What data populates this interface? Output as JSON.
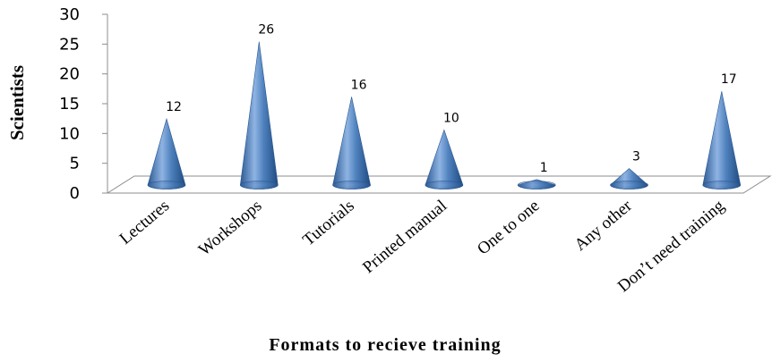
{
  "chart_data": {
    "type": "bar",
    "bar_shape": "cone",
    "view": "3d",
    "xlabel": "Formats to recieve training",
    "ylabel": "Scientists",
    "ylim": [
      0,
      30
    ],
    "y_ticks": [
      0,
      5,
      10,
      15,
      20,
      25,
      30
    ],
    "grid": false,
    "legend": "none",
    "data_labels": true,
    "bar_color": "#4f81bd",
    "categories": [
      "Lectures",
      "Workshops",
      "Tutorials",
      "Printed manual",
      "One to one",
      "Any other",
      "Don’t need training"
    ],
    "values": [
      12,
      26,
      16,
      10,
      1,
      3,
      17
    ]
  }
}
